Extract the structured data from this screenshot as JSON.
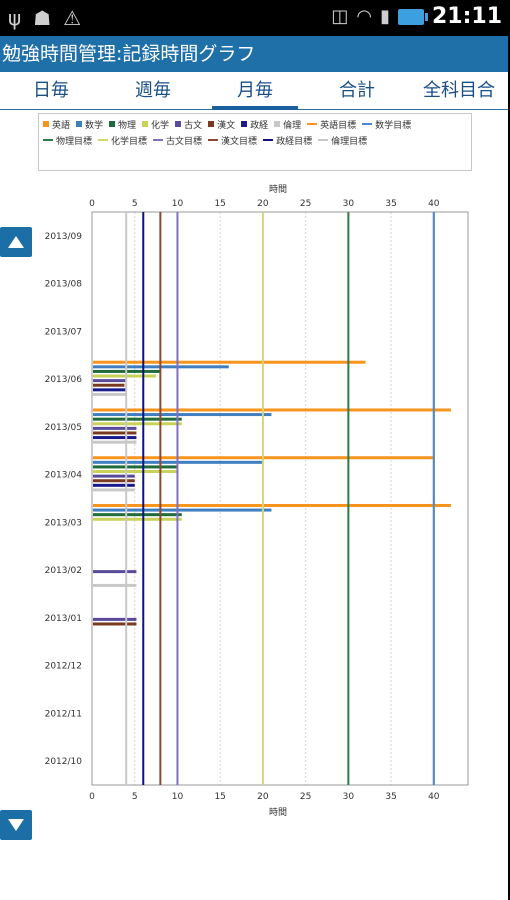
{
  "status_bar": {
    "left_icons": [
      "usb-icon",
      "android-icon",
      "warning-icon"
    ],
    "right_icons": [
      "vibrate-icon",
      "wifi-icon",
      "signal-icon",
      "battery-icon"
    ],
    "time": "21:11"
  },
  "app": {
    "title": "勉強時間管理:記録時間グラフ"
  },
  "tabs": [
    {
      "label": "日毎",
      "active": false
    },
    {
      "label": "週毎",
      "active": false
    },
    {
      "label": "月毎",
      "active": true
    },
    {
      "label": "合計",
      "active": false
    },
    {
      "label": "全科目合",
      "active": false
    }
  ],
  "colors": {
    "英語": "#f7941d",
    "数学": "#3f7fc0",
    "物理": "#1f6b3a",
    "化学": "#c8d25a",
    "古文": "#5a4a9a",
    "漢文": "#7a3a22",
    "政経": "#1a1a8c",
    "倫理": "#c8c8c8",
    "英語目標": "#f7941d",
    "数学目標": "#4a8ad0",
    "物理目標": "#2f7a4a",
    "化学目標": "#d0d870",
    "古文目標": "#8070c0",
    "漢文目標": "#8a4a32",
    "政経目標": "#101080",
    "倫理目標": "#c8c8c8"
  },
  "chart_data": {
    "type": "bar",
    "orientation": "horizontal",
    "title": "",
    "xlabel_top": "時間",
    "xlabel_bottom": "時間",
    "xlim": [
      0,
      44
    ],
    "xticks": [
      0,
      5,
      10,
      15,
      20,
      25,
      30,
      35,
      40
    ],
    "categories": [
      "2013/09",
      "2013/08",
      "2013/07",
      "2013/06",
      "2013/05",
      "2013/04",
      "2013/03",
      "2013/02",
      "2013/01",
      "2012/12",
      "2012/11",
      "2012/10"
    ],
    "series": [
      {
        "name": "英語",
        "type": "bar",
        "values": [
          0,
          0,
          0,
          32,
          42,
          40,
          42,
          0,
          0,
          0,
          0,
          0
        ]
      },
      {
        "name": "数学",
        "type": "bar",
        "values": [
          0,
          0,
          0,
          16,
          21,
          20,
          21,
          0,
          0,
          0,
          0,
          0
        ]
      },
      {
        "name": "物理",
        "type": "bar",
        "values": [
          0,
          0,
          0,
          8,
          10.5,
          10,
          10.5,
          0,
          0,
          0,
          0,
          0
        ]
      },
      {
        "name": "化学",
        "type": "bar",
        "values": [
          0,
          0,
          0,
          7.5,
          10.5,
          10,
          10.5,
          0,
          0,
          0,
          0,
          0
        ]
      },
      {
        "name": "古文",
        "type": "bar",
        "values": [
          0,
          0,
          0,
          4,
          5.2,
          5,
          0,
          5.2,
          5.2,
          0,
          0,
          0
        ]
      },
      {
        "name": "漢文",
        "type": "bar",
        "values": [
          0,
          0,
          0,
          3.8,
          5.2,
          5,
          0,
          0,
          5.2,
          0,
          0,
          0
        ]
      },
      {
        "name": "政経",
        "type": "bar",
        "values": [
          0,
          0,
          0,
          4,
          5.2,
          5,
          0,
          0,
          0,
          0,
          0,
          0
        ]
      },
      {
        "name": "倫理",
        "type": "bar",
        "values": [
          0,
          0,
          0,
          4,
          5.2,
          5,
          0,
          5.2,
          0,
          0,
          0,
          0
        ]
      },
      {
        "name": "英語目標",
        "type": "line",
        "value": 40
      },
      {
        "name": "数学目標",
        "type": "line",
        "value": 40
      },
      {
        "name": "物理目標",
        "type": "line",
        "value": 30
      },
      {
        "name": "化学目標",
        "type": "line",
        "value": 20
      },
      {
        "name": "古文目標",
        "type": "line",
        "value": 10
      },
      {
        "name": "漢文目標",
        "type": "line",
        "value": 8
      },
      {
        "name": "政経目標",
        "type": "line",
        "value": 6
      },
      {
        "name": "倫理目標",
        "type": "line",
        "value": 4
      }
    ],
    "grid": true,
    "legend_position": "top"
  }
}
